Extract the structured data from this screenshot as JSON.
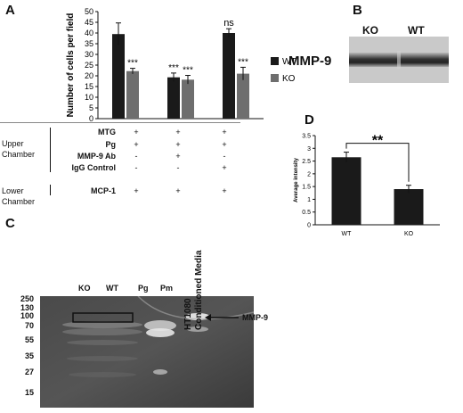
{
  "panels": {
    "a": "A",
    "b": "B",
    "c": "C",
    "d": "D"
  },
  "chart_data": [
    {
      "type": "bar",
      "panel": "A",
      "ylabel": "Number of cells per field",
      "ylim": [
        0,
        50
      ],
      "yticks": [
        "0",
        "5",
        "10",
        "15",
        "20",
        "25",
        "30",
        "35",
        "40",
        "45",
        "50"
      ],
      "group_count": 3,
      "series": [
        {
          "name": "WT",
          "color": "#1a1a1a",
          "values": [
            39.5,
            19.3,
            40.0
          ],
          "errors": [
            5.2,
            2.0,
            2.0
          ]
        },
        {
          "name": "KO",
          "color": "#6e6e6e",
          "values": [
            22.2,
            18.2,
            21.0
          ],
          "errors": [
            1.3,
            2.0,
            3.0
          ]
        }
      ],
      "annotations": [
        {
          "group": 0,
          "series": 1,
          "text": "***"
        },
        {
          "group": 1,
          "series": 0,
          "text": "***"
        },
        {
          "group": 1,
          "series": 1,
          "text": "***"
        },
        {
          "group": 2,
          "series": 0,
          "text": "ns"
        },
        {
          "group": 2,
          "series": 1,
          "text": "***"
        }
      ],
      "legend": "right",
      "conditions": {
        "upper_chamber_label": "Upper\nChamber",
        "lower_chamber_label": "Lower\nChamber",
        "rows": [
          {
            "label": "MTG",
            "values": [
              "+",
              "+",
              "+"
            ]
          },
          {
            "label": "Pg",
            "values": [
              "+",
              "+",
              "+"
            ]
          },
          {
            "label": "MMP-9 Ab",
            "values": [
              "-",
              "+",
              "-"
            ]
          },
          {
            "label": "IgG Control",
            "values": [
              "-",
              "-",
              "+"
            ]
          },
          {
            "label": "MCP-1",
            "values": [
              "+",
              "+",
              "+"
            ]
          }
        ]
      }
    },
    {
      "type": "bar",
      "panel": "D",
      "categories": [
        "WT",
        "KO"
      ],
      "values": [
        2.65,
        1.4
      ],
      "errors": [
        0.2,
        0.15
      ],
      "ylabel": "Average intensity",
      "ylim": [
        0,
        3.5
      ],
      "yticks": [
        "0",
        "0.5",
        "1",
        "1.5",
        "2",
        "2.5",
        "3",
        "3.5"
      ],
      "significance": "**",
      "color": "#1a1a1a"
    }
  ],
  "blot_b": {
    "lanes": [
      "KO",
      "WT"
    ],
    "label": "MMP-9"
  },
  "zymogram_c": {
    "lanes": [
      "KO",
      "WT",
      "Pg",
      "Pm",
      "HT1080\nConditioned Media"
    ],
    "markers": [
      "250",
      "130",
      "100",
      "70",
      "55",
      "35",
      "27",
      "15"
    ],
    "arrow_label": "MMP-9"
  }
}
